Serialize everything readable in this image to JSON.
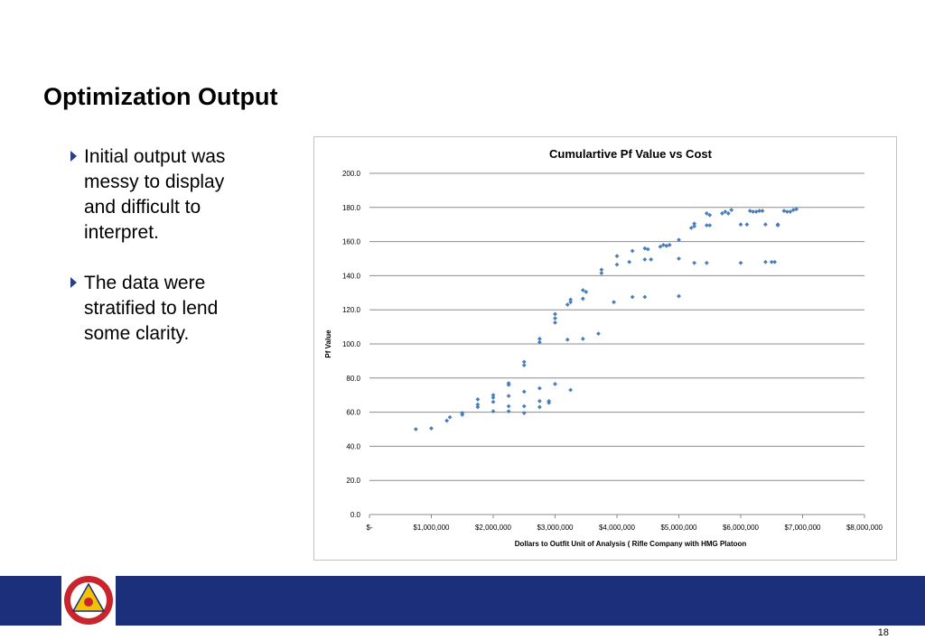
{
  "slide": {
    "title": "Optimization Output",
    "bullets": [
      "Initial output was messy to display and difficult to interpret.",
      "The data were stratified to lend some clarity."
    ],
    "page_number": "18"
  },
  "colors": {
    "footer_bar": "#1b2f7a",
    "bullet_marker": "#2a3f86",
    "series": "#4a7ebb",
    "logo_red": "#c8262c",
    "logo_yellow": "#f2c300",
    "logo_navy": "#1b2f7a"
  },
  "icons": {
    "bullet": "triangle-right-icon",
    "logo": "seal-logo"
  },
  "chart_data": {
    "type": "scatter",
    "title": "Cumulartive Pf Value vs Cost",
    "xlabel": "Dollars to Outfit Unit of Analysis ( Rifle Company with HMG Platoon",
    "ylabel": "Pf Value",
    "xlim": [
      0,
      8000000
    ],
    "ylim": [
      0,
      200
    ],
    "x_ticks": [
      0,
      1000000,
      2000000,
      3000000,
      4000000,
      5000000,
      6000000,
      7000000,
      8000000
    ],
    "x_tick_labels": [
      "$-",
      "$1,000,000",
      "$2,000,000",
      "$3,000,000",
      "$4,000,000",
      "$5,000,000",
      "$6,000,000",
      "$7,000,000",
      "$8,000,000"
    ],
    "y_ticks": [
      0,
      20,
      40,
      60,
      80,
      100,
      120,
      140,
      160,
      180,
      200
    ],
    "y_tick_labels": [
      "0.0",
      "20.0",
      "40.0",
      "60.0",
      "80.0",
      "100.0",
      "120.0",
      "140.0",
      "160.0",
      "180.0",
      "200.0"
    ],
    "grid": true,
    "legend": "none",
    "series": [
      {
        "points": [
          [
            750000,
            50
          ],
          [
            1000000,
            50.5
          ],
          [
            1250000,
            55
          ],
          [
            1300000,
            57
          ],
          [
            1500000,
            58.5
          ],
          [
            1500000,
            59.5
          ],
          [
            1750000,
            63
          ],
          [
            1750000,
            64.5
          ],
          [
            1750000,
            67.5
          ],
          [
            2000000,
            60.5
          ],
          [
            2000000,
            66
          ],
          [
            2000000,
            68.5
          ],
          [
            2000000,
            70
          ],
          [
            2250000,
            60.5
          ],
          [
            2250000,
            63.5
          ],
          [
            2250000,
            69.5
          ],
          [
            2250000,
            76
          ],
          [
            2250000,
            77
          ],
          [
            2500000,
            59.5
          ],
          [
            2500000,
            63.5
          ],
          [
            2500000,
            72
          ],
          [
            2500000,
            87.5
          ],
          [
            2500000,
            89.5
          ],
          [
            2750000,
            63
          ],
          [
            2750000,
            66.5
          ],
          [
            2750000,
            74
          ],
          [
            2750000,
            101
          ],
          [
            2750000,
            103
          ],
          [
            2900000,
            65.5
          ],
          [
            2900000,
            66.5
          ],
          [
            3000000,
            76.5
          ],
          [
            3000000,
            112.5
          ],
          [
            3000000,
            115
          ],
          [
            3000000,
            117.5
          ],
          [
            3200000,
            102.5
          ],
          [
            3200000,
            123
          ],
          [
            3250000,
            73
          ],
          [
            3250000,
            124.5
          ],
          [
            3250000,
            126
          ],
          [
            3450000,
            103
          ],
          [
            3450000,
            126.5
          ],
          [
            3450000,
            131.5
          ],
          [
            3500000,
            130.5
          ],
          [
            3700000,
            106
          ],
          [
            3750000,
            141.5
          ],
          [
            3750000,
            143.5
          ],
          [
            3950000,
            124.5
          ],
          [
            4000000,
            146.5
          ],
          [
            4000000,
            151.5
          ],
          [
            4200000,
            148
          ],
          [
            4250000,
            127.5
          ],
          [
            4250000,
            154.5
          ],
          [
            4450000,
            127.5
          ],
          [
            4450000,
            149.5
          ],
          [
            4450000,
            156
          ],
          [
            4500000,
            155.5
          ],
          [
            4550000,
            149.5
          ],
          [
            4700000,
            157
          ],
          [
            4750000,
            158
          ],
          [
            4800000,
            157.5
          ],
          [
            4850000,
            158
          ],
          [
            5000000,
            128
          ],
          [
            5000000,
            150
          ],
          [
            5000000,
            161
          ],
          [
            5200000,
            168
          ],
          [
            5250000,
            147.5
          ],
          [
            5250000,
            169
          ],
          [
            5250000,
            170.5
          ],
          [
            5450000,
            147.5
          ],
          [
            5450000,
            169.5
          ],
          [
            5450000,
            176.5
          ],
          [
            5500000,
            175.5
          ],
          [
            5500000,
            169.5
          ],
          [
            5700000,
            176.5
          ],
          [
            5750000,
            177.5
          ],
          [
            5800000,
            176.5
          ],
          [
            5850000,
            178.5
          ],
          [
            6000000,
            147.5
          ],
          [
            6000000,
            170
          ],
          [
            6100000,
            170
          ],
          [
            6150000,
            178
          ],
          [
            6200000,
            177.5
          ],
          [
            6250000,
            177.5
          ],
          [
            6300000,
            178
          ],
          [
            6350000,
            178
          ],
          [
            6400000,
            148
          ],
          [
            6400000,
            170
          ],
          [
            6500000,
            148
          ],
          [
            6550000,
            148
          ],
          [
            6600000,
            170
          ],
          [
            6600000,
            169.5
          ],
          [
            6700000,
            178
          ],
          [
            6750000,
            177.5
          ],
          [
            6800000,
            177.5
          ],
          [
            6850000,
            178.5
          ],
          [
            6900000,
            179
          ]
        ]
      }
    ]
  }
}
